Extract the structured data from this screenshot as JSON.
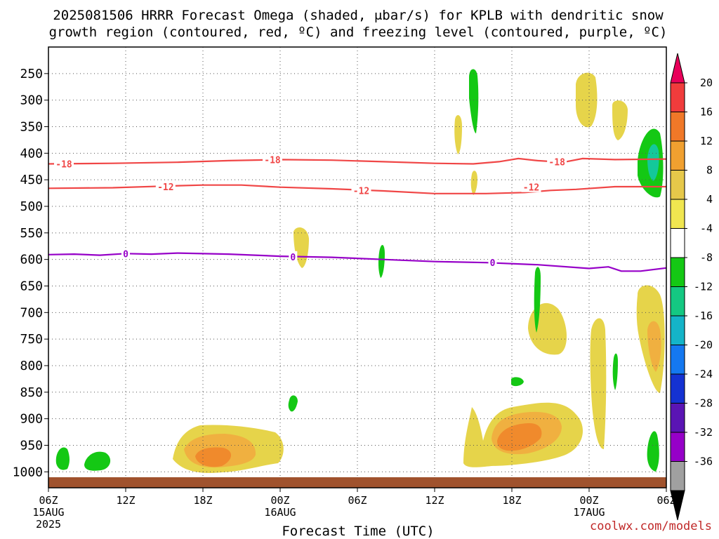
{
  "chart_data": {
    "type": "heatmap",
    "title_line1": "2025081506 HRRR Forecast Omega (shaded, μbar/s) for KPLB with dendritic snow",
    "title_line2": "growth region (contoured, red, ºC) and freezing level (contoured, purple, ºC)",
    "xlabel": "Forecast Time (UTC)",
    "x_ticks": [
      {
        "hour": 0,
        "label": "06Z",
        "sub": "15AUG",
        "sub2": "2025"
      },
      {
        "hour": 6,
        "label": "12Z",
        "sub": "",
        "sub2": ""
      },
      {
        "hour": 12,
        "label": "18Z",
        "sub": "",
        "sub2": ""
      },
      {
        "hour": 18,
        "label": "00Z",
        "sub": "16AUG",
        "sub2": ""
      },
      {
        "hour": 24,
        "label": "06Z",
        "sub": "",
        "sub2": ""
      },
      {
        "hour": 30,
        "label": "12Z",
        "sub": "",
        "sub2": ""
      },
      {
        "hour": 36,
        "label": "18Z",
        "sub": "",
        "sub2": ""
      },
      {
        "hour": 42,
        "label": "00Z",
        "sub": "17AUG",
        "sub2": ""
      },
      {
        "hour": 48,
        "label": "06Z",
        "sub": "",
        "sub2": ""
      }
    ],
    "y_ticks": [
      250,
      300,
      350,
      400,
      450,
      500,
      550,
      600,
      650,
      700,
      750,
      800,
      850,
      900,
      950,
      1000
    ],
    "ylim_hpa": [
      200,
      1030
    ],
    "x_range_hours": [
      0,
      48
    ],
    "colorbar": {
      "labels": [
        "20",
        "16",
        "12",
        "8",
        "4",
        "-4",
        "-8",
        "-12",
        "-16",
        "-20",
        "-24",
        "-28",
        "-32",
        "-36"
      ],
      "colors": [
        "#e8005a",
        "#f03c3c",
        "#f07828",
        "#f0a030",
        "#e6c84a",
        "#f0e650",
        "#ffffff",
        "#14c814",
        "#14c882",
        "#14b4c8",
        "#1478f0",
        "#1432d2",
        "#5a14b4",
        "#9600c8",
        "#a0a0a0",
        "#000000"
      ]
    },
    "contours": {
      "dgz_minus18": {
        "label": "-18",
        "color": "#f04646",
        "points": [
          [
            0,
            420
          ],
          [
            5,
            419
          ],
          [
            10,
            417
          ],
          [
            14,
            414
          ],
          [
            18,
            412
          ],
          [
            22,
            413
          ],
          [
            26,
            416
          ],
          [
            30,
            419
          ],
          [
            33,
            420
          ],
          [
            35,
            416
          ],
          [
            36.5,
            410
          ],
          [
            38,
            414
          ],
          [
            40,
            417
          ],
          [
            41.5,
            410
          ],
          [
            44,
            412
          ],
          [
            48,
            411
          ]
        ],
        "label_at": [
          [
            1.2,
            420
          ],
          [
            17.4,
            412
          ],
          [
            39.5,
            416
          ]
        ]
      },
      "dgz_minus12": {
        "label": "-12",
        "color": "#f04646",
        "points": [
          [
            0,
            466
          ],
          [
            5,
            465
          ],
          [
            9,
            462
          ],
          [
            12,
            460
          ],
          [
            15,
            460
          ],
          [
            18,
            464
          ],
          [
            22,
            467
          ],
          [
            26,
            471
          ],
          [
            30,
            476
          ],
          [
            34,
            476
          ],
          [
            37,
            474
          ],
          [
            39,
            470
          ],
          [
            41,
            468
          ],
          [
            44,
            463
          ],
          [
            48,
            463
          ]
        ],
        "label_at": [
          [
            9.1,
            463
          ],
          [
            24.3,
            470
          ],
          [
            37.5,
            464
          ]
        ]
      },
      "freezing_0": {
        "label": "0",
        "color": "#9600c8",
        "points": [
          [
            0,
            591
          ],
          [
            2,
            590
          ],
          [
            4,
            592
          ],
          [
            6,
            589
          ],
          [
            8,
            590
          ],
          [
            10,
            588
          ],
          [
            14,
            590
          ],
          [
            18,
            594
          ],
          [
            22,
            596
          ],
          [
            26,
            600
          ],
          [
            30,
            604
          ],
          [
            34,
            606
          ],
          [
            38,
            610
          ],
          [
            42,
            617
          ],
          [
            43.5,
            614
          ],
          [
            44.5,
            622
          ],
          [
            46,
            622
          ],
          [
            48,
            616
          ]
        ],
        "label_at": [
          [
            6,
            589
          ],
          [
            19,
            595
          ],
          [
            34.5,
            606
          ]
        ]
      }
    },
    "terrain_color": "#a0522d",
    "credit": "coolwx.com/models"
  }
}
